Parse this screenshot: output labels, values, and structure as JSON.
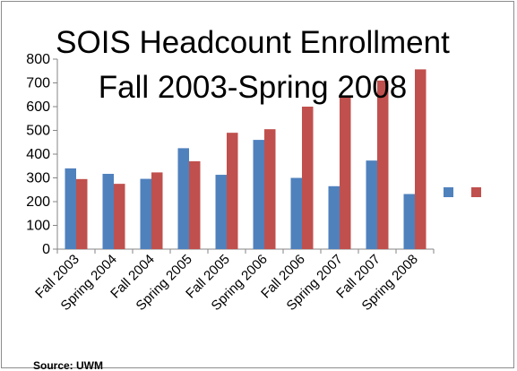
{
  "chart_data": {
    "type": "bar",
    "title_lines": [
      "SOIS Headcount Enrollment",
      "Fall 2003-Spring 2008"
    ],
    "categories": [
      "Fall 2003",
      "Spring 2004",
      "Fall 2004",
      "Spring 2005",
      "Fall 2005",
      "Spring 2006",
      "Fall 2006",
      "Spring 2007",
      "Fall 2007",
      "Spring 2008"
    ],
    "series": [
      {
        "color": "#4f81bd",
        "values": [
          340,
          317,
          296,
          425,
          313,
          460,
          300,
          265,
          373,
          232
        ]
      },
      {
        "color": "#c0504d",
        "values": [
          295,
          275,
          323,
          370,
          490,
          505,
          600,
          640,
          710,
          757
        ]
      }
    ],
    "ylim": [
      0,
      800
    ],
    "yticks": [
      0,
      100,
      200,
      300,
      400,
      500,
      600,
      700,
      800
    ],
    "grid": false,
    "legend": "right",
    "source": "Source: UWM"
  }
}
